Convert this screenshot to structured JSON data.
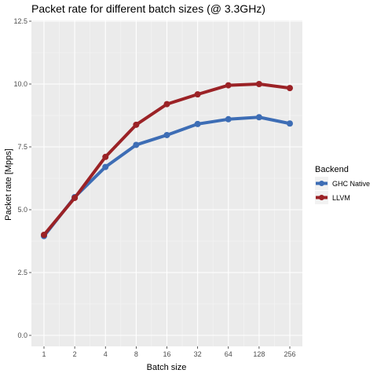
{
  "chart_data": {
    "type": "line",
    "title": "Packet rate for different batch sizes (@ 3.3GHz)",
    "xlabel": "Batch size",
    "ylabel": "Packet rate [Mpps]",
    "categories": [
      "1",
      "2",
      "4",
      "8",
      "16",
      "32",
      "64",
      "128",
      "256"
    ],
    "ylim": [
      0,
      12.5
    ],
    "yticks": [
      0.0,
      2.5,
      5.0,
      7.5,
      10.0,
      12.5
    ],
    "ytick_labels": [
      "0.0",
      "2.5",
      "5.0",
      "7.5",
      "10.0",
      "12.5"
    ],
    "legend": {
      "title": "Backend",
      "position": "right"
    },
    "grid": true,
    "series": [
      {
        "name": "GHC Native",
        "color": "#3d6db5",
        "values": [
          3.95,
          5.5,
          6.7,
          7.58,
          7.97,
          8.41,
          8.6,
          8.68,
          8.43
        ]
      },
      {
        "name": "LLVM",
        "color": "#9b2226",
        "values": [
          4.0,
          5.47,
          7.1,
          8.38,
          9.2,
          9.59,
          9.95,
          10.0,
          9.84
        ]
      }
    ]
  }
}
